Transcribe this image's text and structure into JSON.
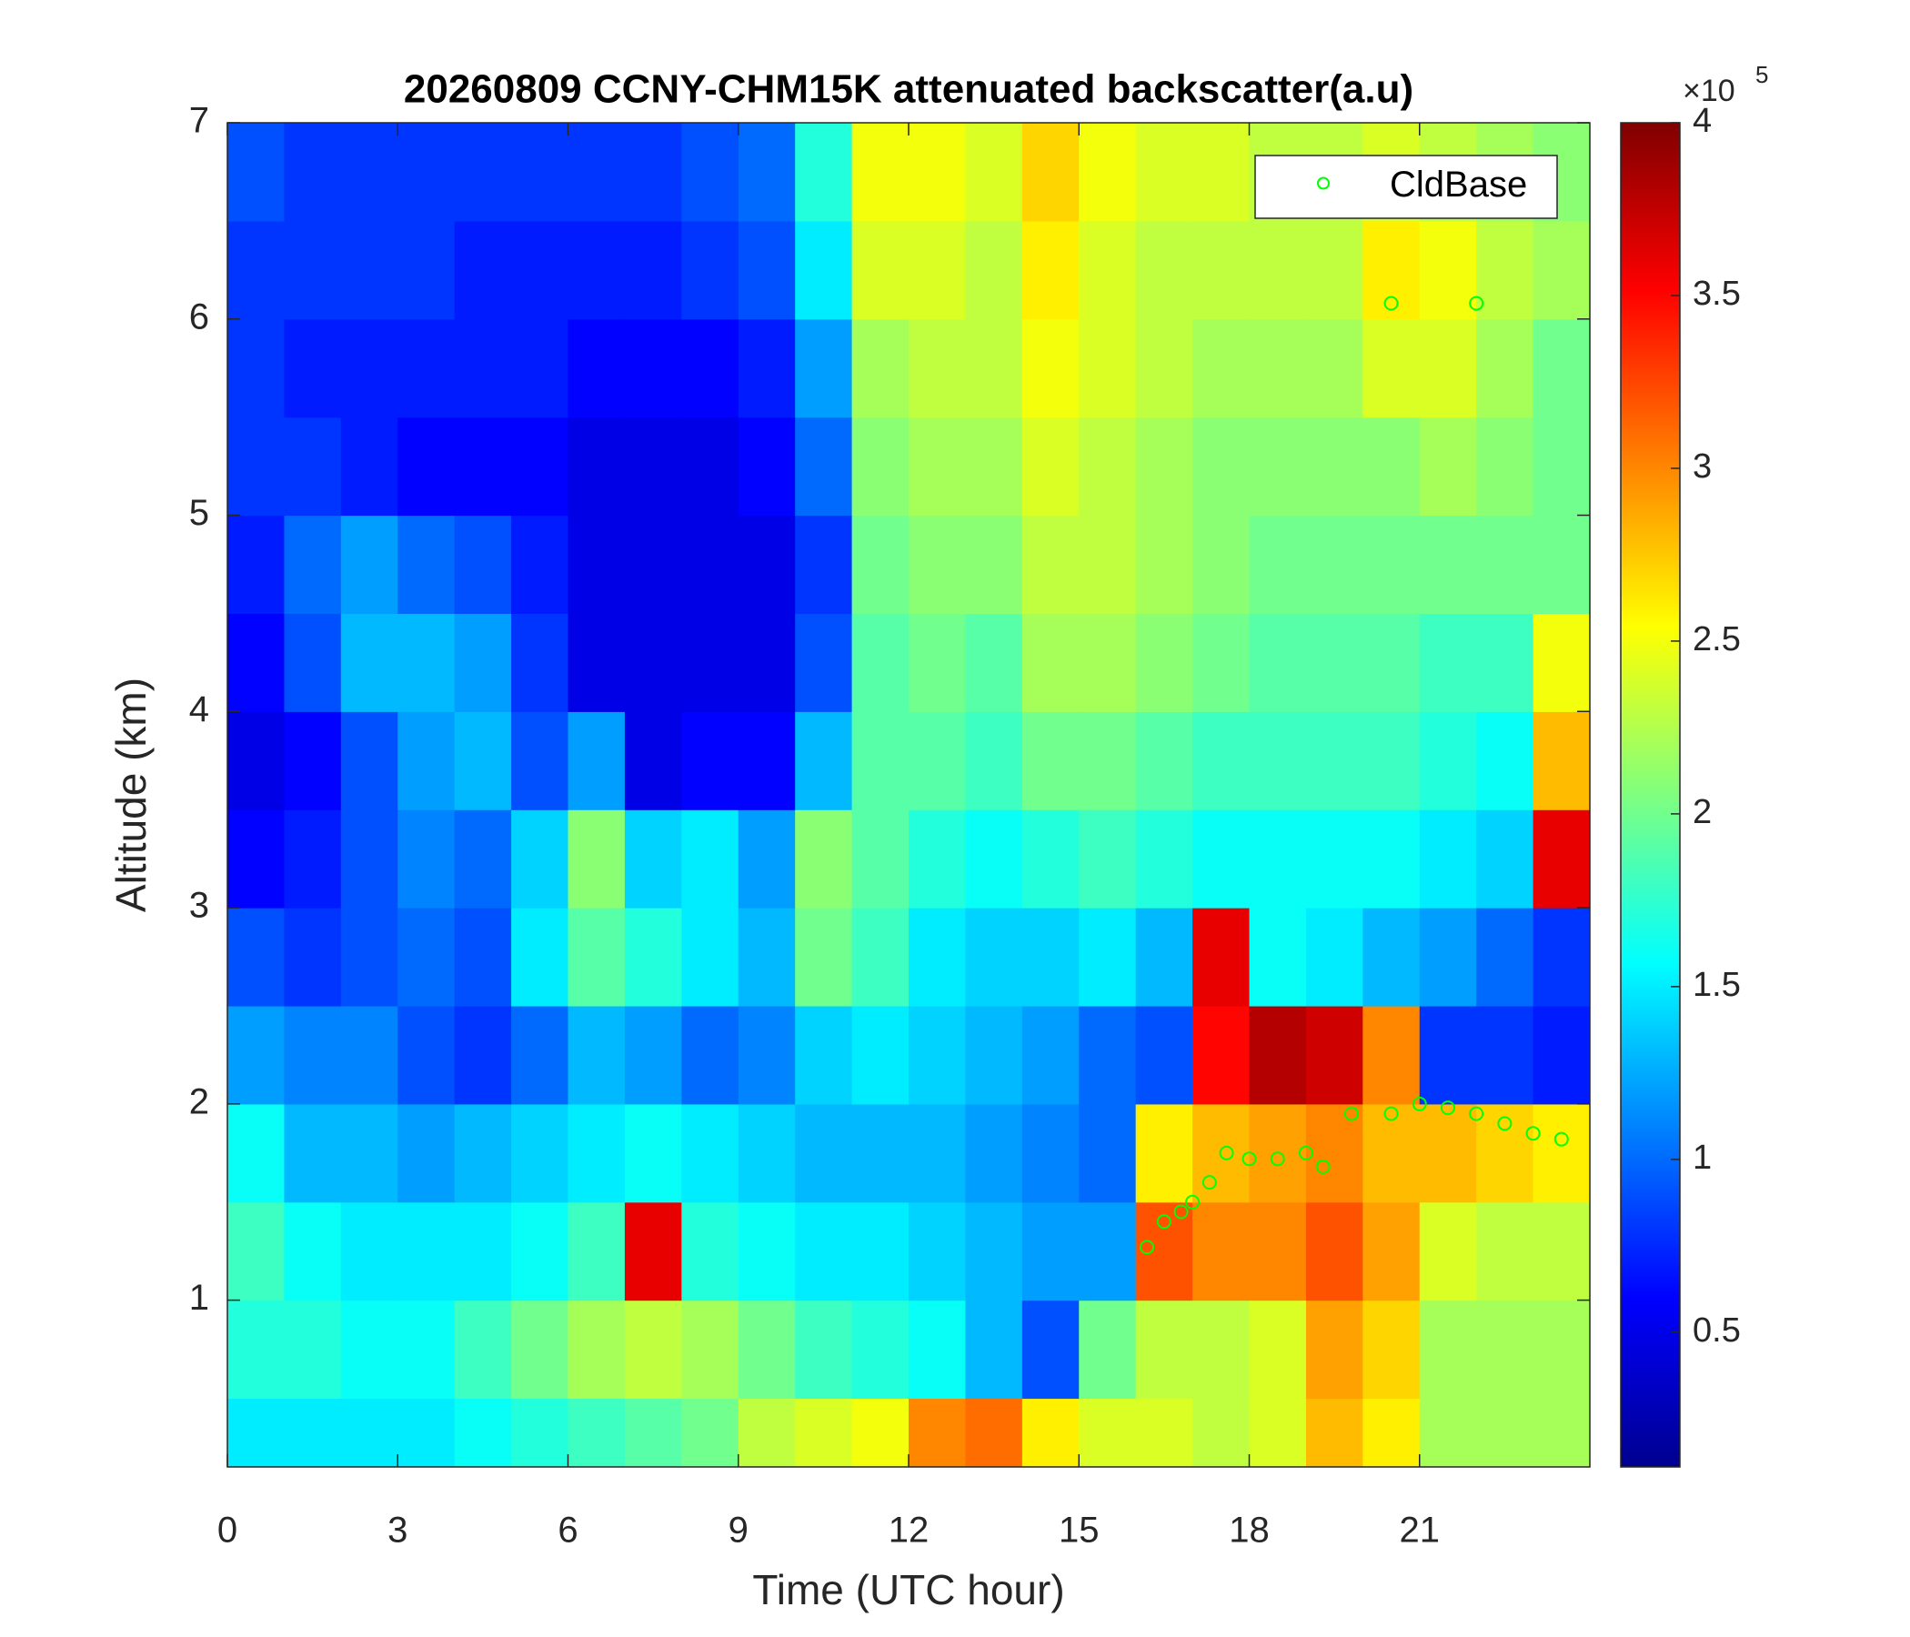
{
  "chart_data": {
    "type": "heatmap",
    "title": "20260809 CCNY-CHM15K attenuated backscatter(a.u)",
    "xlabel": "Time (UTC hour)",
    "ylabel": "Altitude (km)",
    "xlim": [
      0,
      24
    ],
    "ylim": [
      0.15,
      7
    ],
    "xticks": [
      0,
      3,
      6,
      9,
      12,
      15,
      18,
      21
    ],
    "yticks": [
      1,
      2,
      3,
      4,
      5,
      6,
      7
    ],
    "colormap": "jet",
    "clim": [
      0.11,
      4
    ],
    "cticks": [
      0.5,
      1,
      1.5,
      2,
      2.5,
      3,
      3.5,
      4
    ],
    "colorbar_exponent_base": "×10",
    "colorbar_exponent": "5",
    "xbins": [
      0,
      1,
      2,
      3,
      4,
      5,
      6,
      7,
      8,
      9,
      10,
      11,
      12,
      13,
      14,
      15,
      16,
      17,
      18,
      19,
      20,
      21,
      22,
      23,
      24
    ],
    "ybins": [
      0.15,
      0.5,
      1,
      1.5,
      2,
      2.5,
      3,
      3.5,
      4,
      4.5,
      5,
      5.5,
      6,
      6.5,
      7
    ],
    "z": [
      [
        1.5,
        1.5,
        1.5,
        1.5,
        1.6,
        1.7,
        1.8,
        1.9,
        2.0,
        2.3,
        2.4,
        2.5,
        3.0,
        3.1,
        2.6,
        2.4,
        2.4,
        2.3,
        2.4,
        2.8,
        2.6,
        2.2,
        2.2,
        2.2
      ],
      [
        1.7,
        1.7,
        1.6,
        1.6,
        1.8,
        2.0,
        2.2,
        2.3,
        2.2,
        2.0,
        1.8,
        1.7,
        1.6,
        1.3,
        0.9,
        2.0,
        2.3,
        2.3,
        2.4,
        2.9,
        2.7,
        2.2,
        2.2,
        2.2
      ],
      [
        1.8,
        1.6,
        1.5,
        1.5,
        1.5,
        1.6,
        1.8,
        3.6,
        1.7,
        1.6,
        1.5,
        1.5,
        1.4,
        1.3,
        1.2,
        1.2,
        3.2,
        3.0,
        3.0,
        3.2,
        2.9,
        2.4,
        2.3,
        2.3
      ],
      [
        1.6,
        1.3,
        1.3,
        1.2,
        1.3,
        1.4,
        1.5,
        1.6,
        1.5,
        1.4,
        1.3,
        1.3,
        1.3,
        1.2,
        1.1,
        1.0,
        2.6,
        2.8,
        2.9,
        3.0,
        2.8,
        2.8,
        2.7,
        2.6
      ],
      [
        1.2,
        1.1,
        1.1,
        0.9,
        0.8,
        1.0,
        1.3,
        1.2,
        1.0,
        1.1,
        1.4,
        1.5,
        1.4,
        1.3,
        1.2,
        1.0,
        0.9,
        3.5,
        3.8,
        3.7,
        3.0,
        0.8,
        0.8,
        0.7
      ],
      [
        0.9,
        0.8,
        0.9,
        1.0,
        0.9,
        1.5,
        1.9,
        1.7,
        1.5,
        1.3,
        2.0,
        1.8,
        1.5,
        1.4,
        1.4,
        1.5,
        1.3,
        3.6,
        1.6,
        1.5,
        1.3,
        1.2,
        1.0,
        0.8
      ],
      [
        0.6,
        0.7,
        0.9,
        1.1,
        1.0,
        1.4,
        2.1,
        1.4,
        1.5,
        1.2,
        2.1,
        1.9,
        1.7,
        1.6,
        1.7,
        1.8,
        1.7,
        1.6,
        1.6,
        1.6,
        1.6,
        1.5,
        1.4,
        3.6
      ],
      [
        0.5,
        0.6,
        0.9,
        1.2,
        1.3,
        0.9,
        1.2,
        0.5,
        0.6,
        0.6,
        1.3,
        1.9,
        1.9,
        1.8,
        2.0,
        2.0,
        1.9,
        1.8,
        1.8,
        1.8,
        1.8,
        1.7,
        1.6,
        2.8
      ],
      [
        0.6,
        0.9,
        1.3,
        1.3,
        1.2,
        0.8,
        0.5,
        0.5,
        0.5,
        0.5,
        0.9,
        1.9,
        2.0,
        1.9,
        2.2,
        2.2,
        2.1,
        2.0,
        1.9,
        1.9,
        1.9,
        1.8,
        1.8,
        2.5
      ],
      [
        0.7,
        1.0,
        1.2,
        1.0,
        0.9,
        0.7,
        0.5,
        0.5,
        0.5,
        0.5,
        0.8,
        2.0,
        2.1,
        2.1,
        2.3,
        2.3,
        2.2,
        2.1,
        2.0,
        2.0,
        2.0,
        2.0,
        2.0,
        2.0
      ],
      [
        0.8,
        0.8,
        0.7,
        0.6,
        0.6,
        0.6,
        0.5,
        0.5,
        0.5,
        0.6,
        1.0,
        2.1,
        2.2,
        2.2,
        2.4,
        2.3,
        2.2,
        2.1,
        2.1,
        2.1,
        2.1,
        2.2,
        2.1,
        2.0
      ],
      [
        0.8,
        0.7,
        0.7,
        0.7,
        0.7,
        0.7,
        0.6,
        0.6,
        0.6,
        0.7,
        1.2,
        2.2,
        2.3,
        2.3,
        2.5,
        2.4,
        2.3,
        2.2,
        2.2,
        2.2,
        2.4,
        2.4,
        2.2,
        2.0
      ],
      [
        0.8,
        0.8,
        0.8,
        0.8,
        0.7,
        0.7,
        0.7,
        0.7,
        0.8,
        0.9,
        1.5,
        2.4,
        2.4,
        2.3,
        2.6,
        2.4,
        2.3,
        2.3,
        2.3,
        2.3,
        2.6,
        2.5,
        2.3,
        2.2
      ],
      [
        0.9,
        0.8,
        0.8,
        0.8,
        0.8,
        0.8,
        0.8,
        0.8,
        0.9,
        1.0,
        1.7,
        2.5,
        2.5,
        2.4,
        2.7,
        2.5,
        2.4,
        2.4,
        2.3,
        2.3,
        2.4,
        2.3,
        2.2,
        2.1
      ]
    ],
    "series": [
      {
        "name": "CldBase",
        "color": "#00ff00",
        "x": [
          16.2,
          16.5,
          16.8,
          17.0,
          17.3,
          17.6,
          18.0,
          18.5,
          19.0,
          19.3,
          19.8,
          20.5,
          21.0,
          21.5,
          22.0,
          22.5,
          23.0,
          23.5,
          20.5,
          22.0
        ],
        "y": [
          1.27,
          1.4,
          1.45,
          1.5,
          1.6,
          1.75,
          1.72,
          1.72,
          1.75,
          1.68,
          1.95,
          1.95,
          2.0,
          1.98,
          1.95,
          1.9,
          1.85,
          1.82,
          6.08,
          6.08
        ]
      }
    ],
    "legend": "northeast"
  }
}
